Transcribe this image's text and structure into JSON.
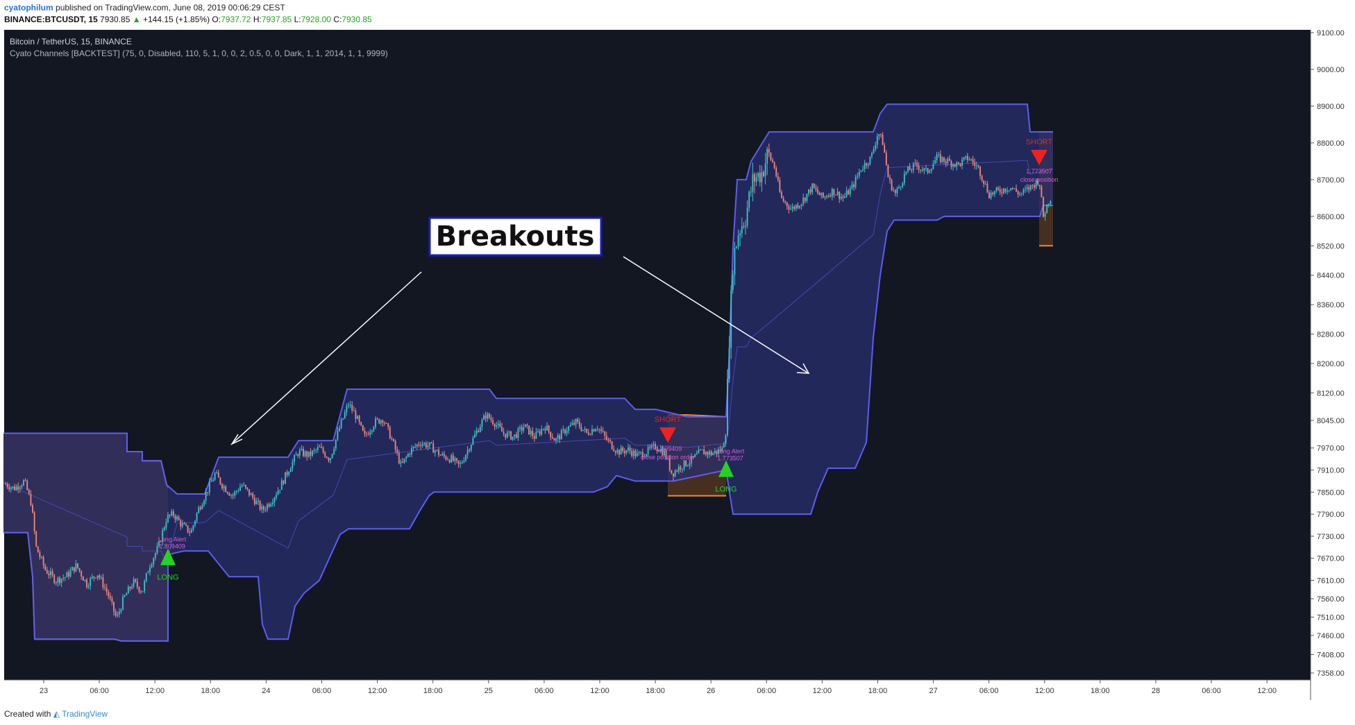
{
  "header": {
    "author": "cyatophilum",
    "published": "published on TradingView.com, June 08, 2019 00:06:29 CEST",
    "symbol": "BINANCE:BTCUSDT, 15",
    "last": "7930.85",
    "change": "+144.15 (+1.85%)",
    "o_label": "O:",
    "o": "7937.72",
    "h_label": "H:",
    "h": "7937.85",
    "l_label": "L:",
    "l": "7928.00",
    "c_label": "C:",
    "c": "7930.85"
  },
  "chart_data": {
    "type": "candlestick",
    "title": "Bitcoin / TetherUS, 15, BINANCE",
    "indicator": "Cyato Channels [BACKTEST] (75, 0, Disabled, 110, 5, 1, 0, 0, 2, 0.5, 0, 0, Dark, 1, 1, 2014, 1, 1, 9999)",
    "annotation": "Breakouts",
    "x_ticks": [
      "23",
      "06:00",
      "12:00",
      "18:00",
      "24",
      "06:00",
      "12:00",
      "18:00",
      "25",
      "06:00",
      "12:00",
      "18:00",
      "26",
      "06:00",
      "12:00",
      "18:00",
      "27",
      "06:00",
      "12:00",
      "18:00",
      "28",
      "06:00",
      "12:00"
    ],
    "y_ticks": [
      "9100.00",
      "9000.00",
      "8900.00",
      "8800.00",
      "8700.00",
      "8600.00",
      "8520.00",
      "8440.00",
      "8360.00",
      "8280.00",
      "8200.00",
      "8120.00",
      "8045.00",
      "7970.00",
      "7910.00",
      "7850.00",
      "7790.00",
      "7730.00",
      "7670.00",
      "7610.00",
      "7560.00",
      "7510.00",
      "7460.00",
      "7408.00",
      "7358.00"
    ],
    "y_range": [
      7330,
      9110
    ],
    "signals": [
      {
        "type": "LONG",
        "x": 242,
        "price": 7670,
        "text1": "Long Alert",
        "text2": "1.809409"
      },
      {
        "type": "SHORT",
        "x": 962,
        "price": 8045,
        "text1": "-1.809409",
        "text2": "close position order"
      },
      {
        "type": "LONG",
        "x": 1046,
        "price": 7910,
        "text1": "Long Alert",
        "text2": "1.773507"
      },
      {
        "type": "SHORT",
        "x": 1497,
        "price": 8800,
        "text1": "1.773507",
        "text2": "close position"
      }
    ],
    "channel_upper": [
      [
        5,
        8010
      ],
      [
        183,
        8010
      ],
      [
        183,
        7960
      ],
      [
        205,
        7960
      ],
      [
        205,
        7935
      ],
      [
        232,
        7935
      ],
      [
        240,
        7870
      ],
      [
        255,
        7845
      ],
      [
        295,
        7845
      ],
      [
        315,
        7945
      ],
      [
        415,
        7945
      ],
      [
        430,
        7990
      ],
      [
        480,
        7990
      ],
      [
        500,
        8130
      ],
      [
        705,
        8130
      ],
      [
        715,
        8105
      ],
      [
        900,
        8105
      ],
      [
        915,
        8075
      ],
      [
        945,
        8075
      ],
      [
        990,
        8055
      ],
      [
        1046,
        8055
      ],
      [
        1050,
        8200
      ],
      [
        1056,
        8520
      ],
      [
        1062,
        8700
      ],
      [
        1075,
        8700
      ],
      [
        1082,
        8750
      ],
      [
        1108,
        8830
      ],
      [
        1258,
        8830
      ],
      [
        1268,
        8880
      ],
      [
        1278,
        8905
      ],
      [
        1480,
        8905
      ],
      [
        1484,
        8830
      ],
      [
        1517,
        8830
      ]
    ],
    "channel_lower": [
      [
        5,
        7740
      ],
      [
        40,
        7740
      ],
      [
        47,
        7620
      ],
      [
        50,
        7450
      ],
      [
        165,
        7450
      ],
      [
        175,
        7445
      ],
      [
        242,
        7445
      ],
      [
        242,
        7680
      ],
      [
        265,
        7690
      ],
      [
        300,
        7690
      ],
      [
        330,
        7620
      ],
      [
        372,
        7620
      ],
      [
        378,
        7490
      ],
      [
        386,
        7450
      ],
      [
        415,
        7450
      ],
      [
        425,
        7540
      ],
      [
        438,
        7575
      ],
      [
        460,
        7610
      ],
      [
        490,
        7735
      ],
      [
        502,
        7750
      ],
      [
        590,
        7750
      ],
      [
        605,
        7800
      ],
      [
        618,
        7840
      ],
      [
        625,
        7850
      ],
      [
        855,
        7850
      ],
      [
        875,
        7865
      ],
      [
        888,
        7895
      ],
      [
        915,
        7880
      ],
      [
        970,
        7880
      ],
      [
        1046,
        7910
      ],
      [
        1050,
        7860
      ],
      [
        1056,
        7790
      ],
      [
        1168,
        7790
      ],
      [
        1178,
        7850
      ],
      [
        1193,
        7915
      ],
      [
        1232,
        7915
      ],
      [
        1248,
        7985
      ],
      [
        1258,
        8270
      ],
      [
        1268,
        8440
      ],
      [
        1278,
        8560
      ],
      [
        1288,
        8590
      ],
      [
        1350,
        8590
      ],
      [
        1360,
        8600
      ],
      [
        1498,
        8600
      ],
      [
        1503,
        8630
      ],
      [
        1517,
        8630
      ]
    ],
    "orange_band_upper": [
      [
        5,
        8010
      ],
      [
        183,
        8010
      ],
      [
        183,
        7960
      ],
      [
        205,
        7960
      ],
      [
        205,
        7935
      ],
      [
        232,
        7935
      ],
      [
        240,
        7870
      ],
      [
        242,
        7870
      ],
      [
        945,
        8075
      ],
      [
        990,
        8075
      ],
      [
        1046,
        8065
      ]
    ],
    "orange_band_lower": [
      [
        5,
        7740
      ],
      [
        40,
        7740
      ],
      [
        47,
        7620
      ],
      [
        50,
        7450
      ],
      [
        165,
        7450
      ],
      [
        175,
        7445
      ],
      [
        242,
        7445
      ],
      [
        962,
        7860
      ],
      [
        1046,
        7860
      ],
      [
        1498,
        8510
      ],
      [
        1517,
        8510
      ]
    ],
    "orange_zones": [
      {
        "x_from": 5,
        "x_to": 242,
        "upper": [
          [
            5,
            8010
          ],
          [
            183,
            8010
          ],
          [
            183,
            7960
          ],
          [
            205,
            7960
          ],
          [
            205,
            7935
          ],
          [
            232,
            7935
          ],
          [
            240,
            7870
          ],
          [
            242,
            7860
          ]
        ],
        "lower": [
          [
            5,
            7740
          ],
          [
            40,
            7740
          ],
          [
            47,
            7620
          ],
          [
            50,
            7450
          ],
          [
            165,
            7450
          ],
          [
            175,
            7445
          ],
          [
            242,
            7445
          ]
        ]
      },
      {
        "x_from": 962,
        "x_to": 1046,
        "upper": [
          [
            962,
            8060
          ],
          [
            990,
            8060
          ],
          [
            1046,
            8055
          ]
        ],
        "lower": [
          [
            962,
            7840
          ],
          [
            970,
            7840
          ],
          [
            1046,
            7840
          ]
        ]
      },
      {
        "x_from": 1497,
        "x_to": 1517,
        "upper": [
          [
            1497,
            8830
          ],
          [
            1517,
            8830
          ]
        ],
        "lower": [
          [
            1497,
            8520
          ],
          [
            1505,
            8520
          ],
          [
            1517,
            8520
          ]
        ]
      }
    ],
    "price_path": [
      [
        5,
        7875
      ],
      [
        20,
        7860
      ],
      [
        35,
        7880
      ],
      [
        45,
        7820
      ],
      [
        52,
        7700
      ],
      [
        65,
        7640
      ],
      [
        80,
        7610
      ],
      [
        95,
        7620
      ],
      [
        110,
        7650
      ],
      [
        125,
        7600
      ],
      [
        140,
        7630
      ],
      [
        155,
        7575
      ],
      [
        168,
        7505
      ],
      [
        178,
        7560
      ],
      [
        192,
        7605
      ],
      [
        205,
        7580
      ],
      [
        215,
        7650
      ],
      [
        228,
        7700
      ],
      [
        240,
        7780
      ],
      [
        250,
        7790
      ],
      [
        262,
        7760
      ],
      [
        275,
        7740
      ],
      [
        285,
        7800
      ],
      [
        300,
        7860
      ],
      [
        310,
        7900
      ],
      [
        320,
        7870
      ],
      [
        335,
        7840
      ],
      [
        348,
        7870
      ],
      [
        362,
        7840
      ],
      [
        378,
        7800
      ],
      [
        392,
        7830
      ],
      [
        405,
        7870
      ],
      [
        418,
        7920
      ],
      [
        430,
        7960
      ],
      [
        445,
        7950
      ],
      [
        460,
        7970
      ],
      [
        475,
        7940
      ],
      [
        490,
        8030
      ],
      [
        502,
        8090
      ],
      [
        512,
        8060
      ],
      [
        525,
        8000
      ],
      [
        540,
        8040
      ],
      [
        552,
        8050
      ],
      [
        565,
        7990
      ],
      [
        578,
        7920
      ],
      [
        590,
        7960
      ],
      [
        605,
        7985
      ],
      [
        620,
        7975
      ],
      [
        635,
        7950
      ],
      [
        650,
        7940
      ],
      [
        662,
        7920
      ],
      [
        675,
        7970
      ],
      [
        688,
        8020
      ],
      [
        700,
        8060
      ],
      [
        712,
        8040
      ],
      [
        725,
        8010
      ],
      [
        740,
        8000
      ],
      [
        755,
        8030
      ],
      [
        770,
        8000
      ],
      [
        785,
        8030
      ],
      [
        800,
        7990
      ],
      [
        815,
        8020
      ],
      [
        830,
        8040
      ],
      [
        845,
        8010
      ],
      [
        860,
        8030
      ],
      [
        875,
        7990
      ],
      [
        890,
        7960
      ],
      [
        905,
        7965
      ],
      [
        918,
        7950
      ],
      [
        932,
        7960
      ],
      [
        945,
        7975
      ],
      [
        958,
        7955
      ],
      [
        968,
        7900
      ],
      [
        980,
        7920
      ],
      [
        995,
        7935
      ],
      [
        1010,
        7960
      ],
      [
        1025,
        7955
      ],
      [
        1040,
        7965
      ],
      [
        1046,
        8020
      ],
      [
        1050,
        8250
      ],
      [
        1056,
        8480
      ],
      [
        1064,
        8560
      ],
      [
        1074,
        8600
      ],
      [
        1085,
        8700
      ],
      [
        1098,
        8720
      ],
      [
        1106,
        8770
      ],
      [
        1115,
        8740
      ],
      [
        1125,
        8650
      ],
      [
        1140,
        8620
      ],
      [
        1155,
        8640
      ],
      [
        1170,
        8680
      ],
      [
        1185,
        8650
      ],
      [
        1200,
        8670
      ],
      [
        1215,
        8650
      ],
      [
        1228,
        8680
      ],
      [
        1240,
        8730
      ],
      [
        1255,
        8760
      ],
      [
        1265,
        8830
      ],
      [
        1272,
        8800
      ],
      [
        1280,
        8700
      ],
      [
        1290,
        8660
      ],
      [
        1305,
        8720
      ],
      [
        1320,
        8740
      ],
      [
        1335,
        8720
      ],
      [
        1350,
        8760
      ],
      [
        1365,
        8750
      ],
      [
        1380,
        8740
      ],
      [
        1395,
        8760
      ],
      [
        1410,
        8730
      ],
      [
        1425,
        8660
      ],
      [
        1440,
        8670
      ],
      [
        1455,
        8680
      ],
      [
        1470,
        8660
      ],
      [
        1485,
        8680
      ],
      [
        1497,
        8700
      ],
      [
        1503,
        8600
      ],
      [
        1510,
        8640
      ],
      [
        1517,
        8660
      ]
    ]
  }
}
